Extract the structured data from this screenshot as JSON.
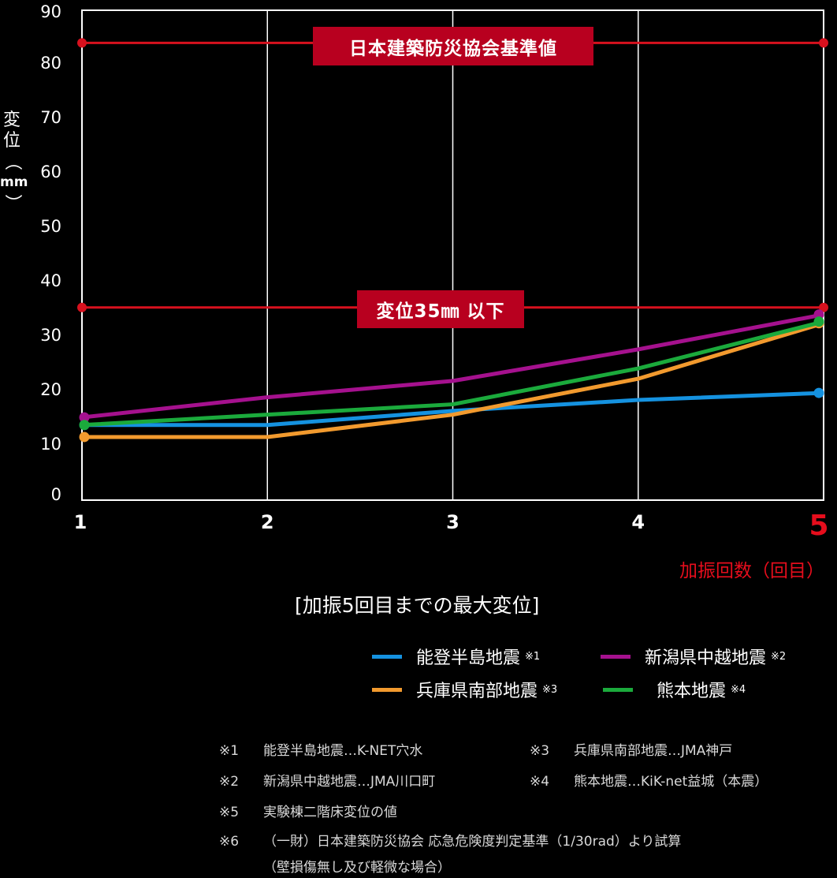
{
  "chart_data": {
    "type": "line",
    "title": "[加振5回目までの最大変位]",
    "xlabel": "加振回数（回目）",
    "ylabel": [
      "変",
      "位",
      "（",
      "mm",
      "）"
    ],
    "x": [
      1,
      2,
      3,
      4,
      5
    ],
    "x_tick_labels": [
      "1",
      "2",
      "3",
      "4",
      "5"
    ],
    "highlight_x": "5",
    "y_ticks": [
      0,
      10,
      20,
      30,
      40,
      50,
      60,
      70,
      80,
      90
    ],
    "ylim": [
      0,
      90
    ],
    "grid": "vertical",
    "series": [
      {
        "name": "能登半島地震",
        "note": "※1",
        "color": "#1592e0",
        "values": [
          13.8,
          13.8,
          16.4,
          18.4,
          19.7
        ]
      },
      {
        "name": "新潟県中越地震",
        "note": "※2",
        "color": "#a5118e",
        "values": [
          15.2,
          18.9,
          21.9,
          27.7,
          34.1
        ]
      },
      {
        "name": "兵庫県南部地震",
        "note": "※3",
        "color": "#f29a2e",
        "values": [
          11.6,
          11.6,
          15.7,
          22.3,
          32.5
        ]
      },
      {
        "name": "熊本地震",
        "note": "※4",
        "color": "#1baa3c",
        "values": [
          13.8,
          15.7,
          17.6,
          24.2,
          32.8
        ]
      }
    ],
    "reference_lines": [
      {
        "label": "日本建築防災協会基準値",
        "value": 84,
        "color": "#d7111e"
      },
      {
        "label": "変位35㎜ 以下",
        "value": 35.4,
        "color": "#d7111e"
      }
    ],
    "legend_position": "bottom-right"
  },
  "notes": [
    {
      "mark": "※1",
      "text": "能登半島地震…K-NET穴水"
    },
    {
      "mark": "※3",
      "text": "兵庫県南部地震…JMA神戸"
    },
    {
      "mark": "※2",
      "text": "新潟県中越地震…JMA川口町"
    },
    {
      "mark": "※4",
      "text": "熊本地震…KiK-net益城（本震）"
    },
    {
      "mark": "※5",
      "text": "実験棟二階床変位の値"
    },
    {
      "mark": "※6",
      "text": "（一財）日本建築防災協会 応急危険度判定基準（1/30rad）より試算"
    },
    {
      "mark": "",
      "text": "（壁損傷無し及び軽微な場合）"
    }
  ]
}
